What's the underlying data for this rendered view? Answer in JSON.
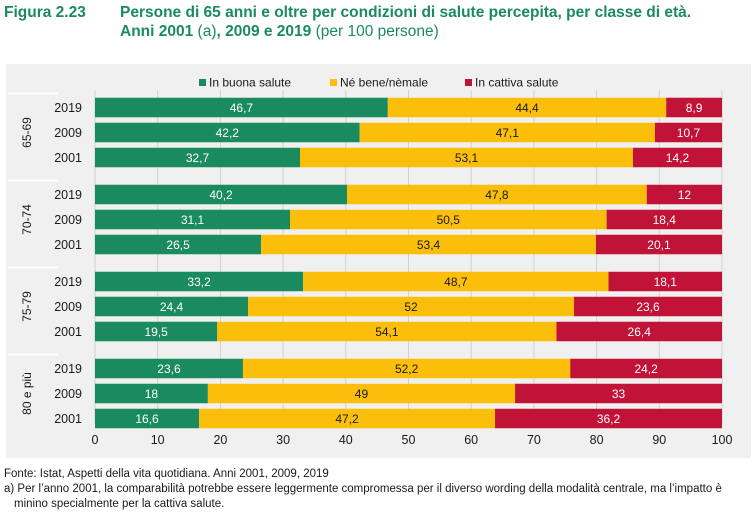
{
  "figure_label": "Figura 2.23",
  "title_line1": "Persone di 65 anni e oltre per condizioni di salute percepita, per classe di età.",
  "title_line2_bold_a": "Anni 2001 ",
  "title_line2_normal": "(a)",
  "title_line2_bold_b": ", 2009 e 2019 ",
  "title_line2_unit": "(per 100 persone)",
  "source_note": "Fonte: Istat, Aspetti della vita quotidiana. Anni 2001, 2009, 2019",
  "footnote": "a) Per l’anno 2001, la comparabilità potrebbe essere leggermente compromessa per il diverso wording della modalità centrale, ma l’impatto è minino specialmente per la cattiva salute.",
  "chart_data": {
    "type": "bar",
    "orientation": "horizontal",
    "stacked": true,
    "xlim": [
      0,
      100
    ],
    "xticks": [
      0,
      10,
      20,
      30,
      40,
      50,
      60,
      70,
      80,
      90,
      100
    ],
    "grid": true,
    "legend_position": "top",
    "series": [
      {
        "name": "In buona salute",
        "color": "#1a8a5f"
      },
      {
        "name": "Né bene/nèmale",
        "color": "#fbbf0b"
      },
      {
        "name": "In cattiva salute",
        "color": "#c11238"
      }
    ],
    "groups": [
      {
        "label": "65-69",
        "rows": [
          {
            "year": "2019",
            "values": [
              46.7,
              44.4,
              8.9
            ],
            "labels": [
              "46,7",
              "44,4",
              "8,9"
            ]
          },
          {
            "year": "2009",
            "values": [
              42.2,
              47.1,
              10.7
            ],
            "labels": [
              "42,2",
              "47,1",
              "10,7"
            ]
          },
          {
            "year": "2001",
            "values": [
              32.7,
              53.1,
              14.2
            ],
            "labels": [
              "32,7",
              "53,1",
              "14,2"
            ]
          }
        ]
      },
      {
        "label": "70-74",
        "rows": [
          {
            "year": "2019",
            "values": [
              40.2,
              47.8,
              12
            ],
            "labels": [
              "40,2",
              "47,8",
              "12"
            ]
          },
          {
            "year": "2009",
            "values": [
              31.1,
              50.5,
              18.4
            ],
            "labels": [
              "31,1",
              "50,5",
              "18,4"
            ]
          },
          {
            "year": "2001",
            "values": [
              26.5,
              53.4,
              20.1
            ],
            "labels": [
              "26,5",
              "53,4",
              "20,1"
            ]
          }
        ]
      },
      {
        "label": "75-79",
        "rows": [
          {
            "year": "2019",
            "values": [
              33.2,
              48.7,
              18.1
            ],
            "labels": [
              "33,2",
              "48,7",
              "18,1"
            ]
          },
          {
            "year": "2009",
            "values": [
              24.4,
              52,
              23.6
            ],
            "labels": [
              "24,4",
              "52",
              "23,6"
            ]
          },
          {
            "year": "2001",
            "values": [
              19.5,
              54.1,
              26.4
            ],
            "labels": [
              "19,5",
              "54,1",
              "26,4"
            ]
          }
        ]
      },
      {
        "label": "80 e più",
        "rows": [
          {
            "year": "2019",
            "values": [
              23.6,
              52.2,
              24.2
            ],
            "labels": [
              "23,6",
              "52,2",
              "24,2"
            ]
          },
          {
            "year": "2009",
            "values": [
              18,
              49,
              33
            ],
            "labels": [
              "18",
              "49",
              "33"
            ]
          },
          {
            "year": "2001",
            "values": [
              16.6,
              47.2,
              36.2
            ],
            "labels": [
              "16,6",
              "47,2",
              "36,2"
            ]
          }
        ]
      }
    ]
  }
}
